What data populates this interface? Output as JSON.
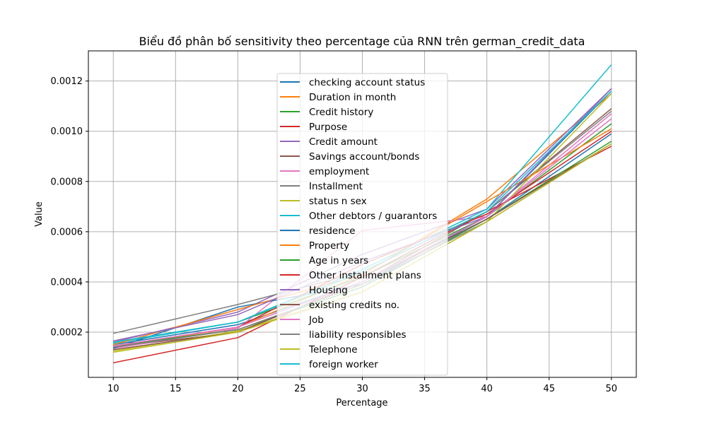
{
  "chart_data": {
    "type": "line",
    "title": "Biểu đồ phân bố sensitivity theo percentage của RNN trên german_credit_data",
    "xlabel": "Percentage",
    "ylabel": "Value",
    "x": [
      10,
      20,
      30,
      40,
      50
    ],
    "x_ticks": [
      "10",
      "15",
      "20",
      "25",
      "30",
      "35",
      "40",
      "45",
      "50"
    ],
    "y_ticks": [
      "0.0002",
      "0.0004",
      "0.0006",
      "0.0008",
      "0.0010",
      "0.0012"
    ],
    "xlim": [
      8,
      52
    ],
    "ylim": [
      2e-05,
      0.00132
    ],
    "grid": true,
    "legend_position": "upper center",
    "series": [
      {
        "name": "checking account status",
        "color": "#1f77b4",
        "values": [
          0.00015,
          0.00023,
          0.0004,
          0.00065,
          0.00099
        ]
      },
      {
        "name": "Duration in month",
        "color": "#ff7f0e",
        "values": [
          0.00014,
          0.00022,
          0.00043,
          0.00073,
          0.00115
        ]
      },
      {
        "name": "Credit history",
        "color": "#2ca02c",
        "values": [
          0.00016,
          0.00024,
          0.00042,
          0.00066,
          0.00103
        ]
      },
      {
        "name": "Purpose",
        "color": "#d62728",
        "values": [
          7.8e-05,
          0.000178,
          0.00042,
          0.00068,
          0.00094
        ]
      },
      {
        "name": "Credit amount",
        "color": "#9467bd",
        "values": [
          0.00016,
          0.00028,
          0.00051,
          0.00069,
          0.00117
        ]
      },
      {
        "name": "Savings account/bonds",
        "color": "#8c564b",
        "values": [
          0.00014,
          0.0002,
          0.0004,
          0.00068,
          0.00109
        ]
      },
      {
        "name": "employment",
        "color": "#e377c2",
        "values": [
          0.000135,
          0.000215,
          0.000605,
          0.00066,
          0.00107
        ]
      },
      {
        "name": " Installment",
        "color": "#7f7f7f",
        "values": [
          0.000195,
          0.00031,
          0.00044,
          0.00068,
          0.00108
        ]
      },
      {
        "name": "status n sex",
        "color": "#bcbd22",
        "values": [
          0.000125,
          0.000205,
          0.00036,
          0.00064,
          0.00115
        ]
      },
      {
        "name": " Other debtors / guarantors",
        "color": "#17becf",
        "values": [
          0.000155,
          0.00024,
          0.00045,
          0.00069,
          0.001265
        ]
      },
      {
        "name": "residence",
        "color": "#1f77b4",
        "values": [
          0.000135,
          0.0003,
          0.00039,
          0.00066,
          0.00116
        ]
      },
      {
        "name": "Property",
        "color": "#ff7f0e",
        "values": [
          0.00015,
          0.00029,
          0.00043,
          0.00072,
          0.00101
        ]
      },
      {
        "name": "Age in years",
        "color": "#2ca02c",
        "values": [
          0.000145,
          0.00021,
          0.00038,
          0.00065,
          0.00096
        ]
      },
      {
        "name": "Other installment plans",
        "color": "#d62728",
        "values": [
          0.000145,
          0.00022,
          0.00047,
          0.00067,
          0.001
        ]
      },
      {
        "name": "Housing",
        "color": "#9467bd",
        "values": [
          0.000165,
          0.00027,
          0.00048,
          0.00066,
          0.00117
        ]
      },
      {
        "name": "existing credits no.",
        "color": "#8c564b",
        "values": [
          0.00013,
          0.0002,
          0.0004,
          0.00065,
          0.00095
        ]
      },
      {
        "name": "Job",
        "color": "#e377c2",
        "values": [
          0.000145,
          0.00022,
          0.0004,
          0.00066,
          0.00105
        ]
      },
      {
        "name": "liability responsibles",
        "color": "#7f7f7f",
        "values": [
          0.00014,
          0.00021,
          0.00039,
          0.00064,
          0.00095
        ]
      },
      {
        "name": "Telephone",
        "color": "#bcbd22",
        "values": [
          0.00012,
          0.0002,
          0.00036,
          0.00064,
          0.00095
        ]
      },
      {
        "name": "foreign worker",
        "color": "#17becf",
        "values": [
          0.00016,
          0.00024,
          0.00044,
          0.00068,
          0.00116
        ]
      }
    ]
  }
}
